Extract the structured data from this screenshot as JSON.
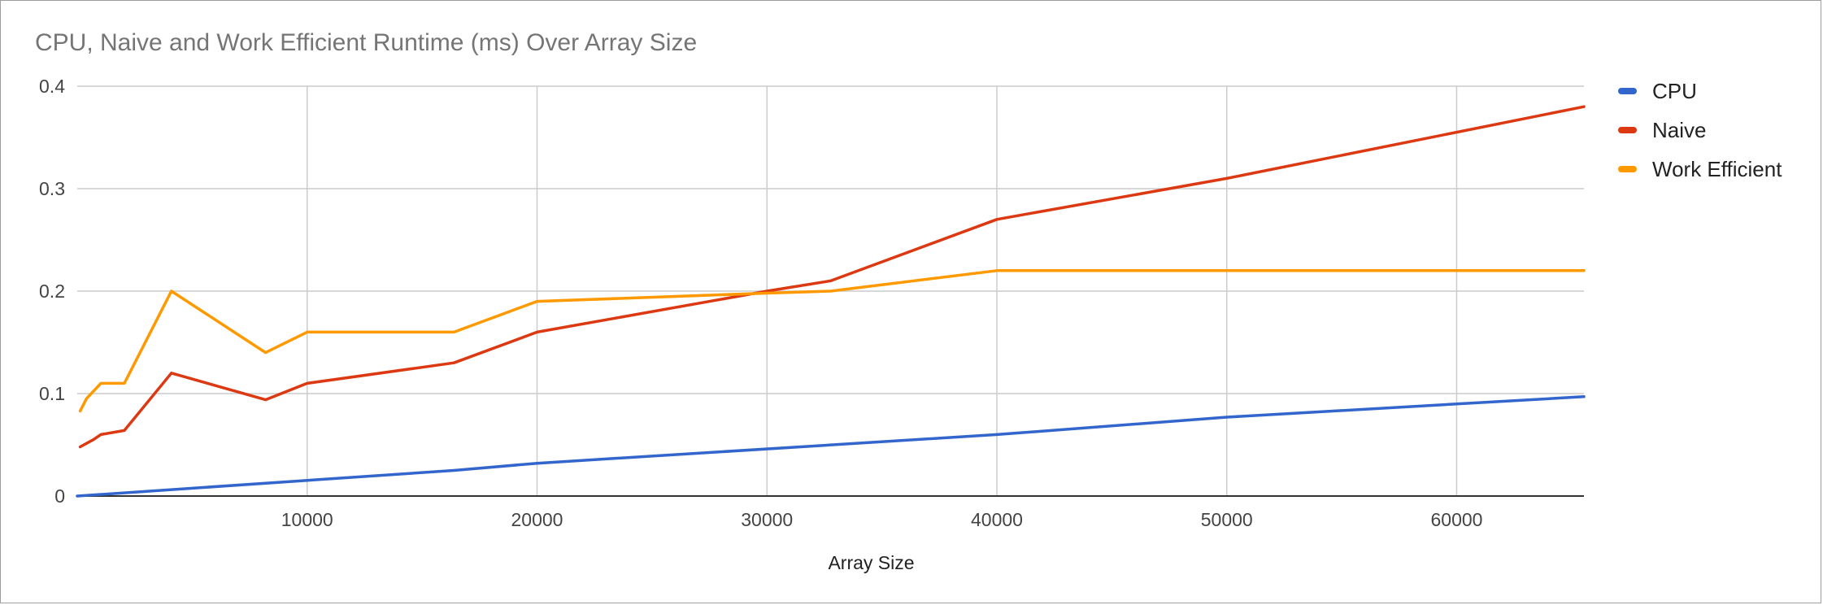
{
  "chart_data": {
    "type": "line",
    "title": "CPU, Naive and Work Efficient Runtime (ms) Over Array Size",
    "xlabel": "Array Size",
    "ylabel": "",
    "xlim": [
      0,
      65536
    ],
    "ylim": [
      0,
      0.4
    ],
    "xticks": [
      10000,
      20000,
      30000,
      40000,
      50000,
      60000
    ],
    "xtick_labels": [
      "10000",
      "20000",
      "30000",
      "40000",
      "50000",
      "60000"
    ],
    "yticks": [
      0,
      0.1,
      0.2,
      0.3,
      0.4
    ],
    "ytick_labels": [
      "0",
      "0.1",
      "0.2",
      "0.3",
      "0.4"
    ],
    "grid": true,
    "legend_position": "right",
    "series": [
      {
        "name": "CPU",
        "color": "#3366cc",
        "points": [
          [
            0,
            0.0
          ],
          [
            16384,
            0.025
          ],
          [
            20000,
            0.032
          ],
          [
            40000,
            0.06
          ],
          [
            50000,
            0.077
          ],
          [
            65536,
            0.097
          ]
        ]
      },
      {
        "name": "Naive",
        "color": "#dc3912",
        "points": [
          [
            128,
            0.048
          ],
          [
            700,
            0.055
          ],
          [
            1024,
            0.06
          ],
          [
            2048,
            0.064
          ],
          [
            4096,
            0.12
          ],
          [
            8192,
            0.094
          ],
          [
            10000,
            0.11
          ],
          [
            16384,
            0.13
          ],
          [
            20000,
            0.16
          ],
          [
            30000,
            0.2
          ],
          [
            32768,
            0.21
          ],
          [
            40000,
            0.27
          ],
          [
            50000,
            0.31
          ],
          [
            65536,
            0.38
          ]
        ]
      },
      {
        "name": "Work Efficient",
        "color": "#ff9900",
        "points": [
          [
            128,
            0.083
          ],
          [
            400,
            0.095
          ],
          [
            1024,
            0.11
          ],
          [
            2048,
            0.11
          ],
          [
            4096,
            0.2
          ],
          [
            8192,
            0.14
          ],
          [
            10000,
            0.16
          ],
          [
            16384,
            0.16
          ],
          [
            20000,
            0.19
          ],
          [
            30000,
            0.198
          ],
          [
            32768,
            0.2
          ],
          [
            40000,
            0.22
          ],
          [
            50000,
            0.22
          ],
          [
            65536,
            0.22
          ]
        ]
      }
    ]
  }
}
